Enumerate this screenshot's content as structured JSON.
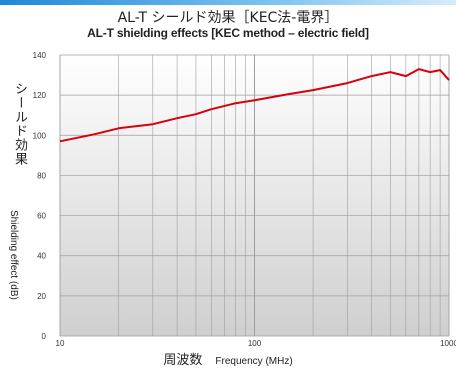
{
  "chart_data": {
    "type": "line",
    "title": "AL-T シールド効果［KEC法-電界］",
    "subtitle": "AL-T shielding effects [KEC method – electric field]",
    "ylabel_jp": "シールド効果",
    "ylabel_en": "Shielding effect (dB)",
    "xlabel_jp": "周波数",
    "xlabel_en": "Frequency (MHz)",
    "x_scale": "log",
    "xlim": [
      10,
      1000
    ],
    "ylim": [
      0,
      140
    ],
    "x_ticks": [
      {
        "value": 10,
        "label": "10"
      },
      {
        "value": 100,
        "label": "100"
      },
      {
        "value": 1000,
        "label": "1000"
      }
    ],
    "y_ticks": [
      {
        "value": 0,
        "label": "0"
      },
      {
        "value": 20,
        "label": "20"
      },
      {
        "value": 40,
        "label": "40"
      },
      {
        "value": 60,
        "label": "60"
      },
      {
        "value": 80,
        "label": "80"
      },
      {
        "value": 100,
        "label": "100"
      },
      {
        "value": 120,
        "label": "120"
      },
      {
        "value": 140,
        "label": "140"
      }
    ],
    "grid": true,
    "series": [
      {
        "color": "#d7000f",
        "x": [
          10,
          15,
          20,
          30,
          40,
          50,
          60,
          80,
          100,
          150,
          200,
          300,
          400,
          500,
          600,
          700,
          800,
          900,
          1000
        ],
        "values": [
          97,
          100.5,
          103.5,
          105.5,
          108.5,
          110.5,
          113,
          116,
          117.5,
          120.5,
          122.5,
          126,
          129.5,
          131.5,
          129.5,
          133,
          131.5,
          132.5,
          127.5
        ]
      }
    ]
  },
  "colors": {
    "plot_background_top": "#ffffff",
    "plot_background_bottom": "#cfcfcf",
    "grid": "#9e9e9e",
    "line": "#d7000f",
    "accent_bar": "#1e88d8"
  }
}
